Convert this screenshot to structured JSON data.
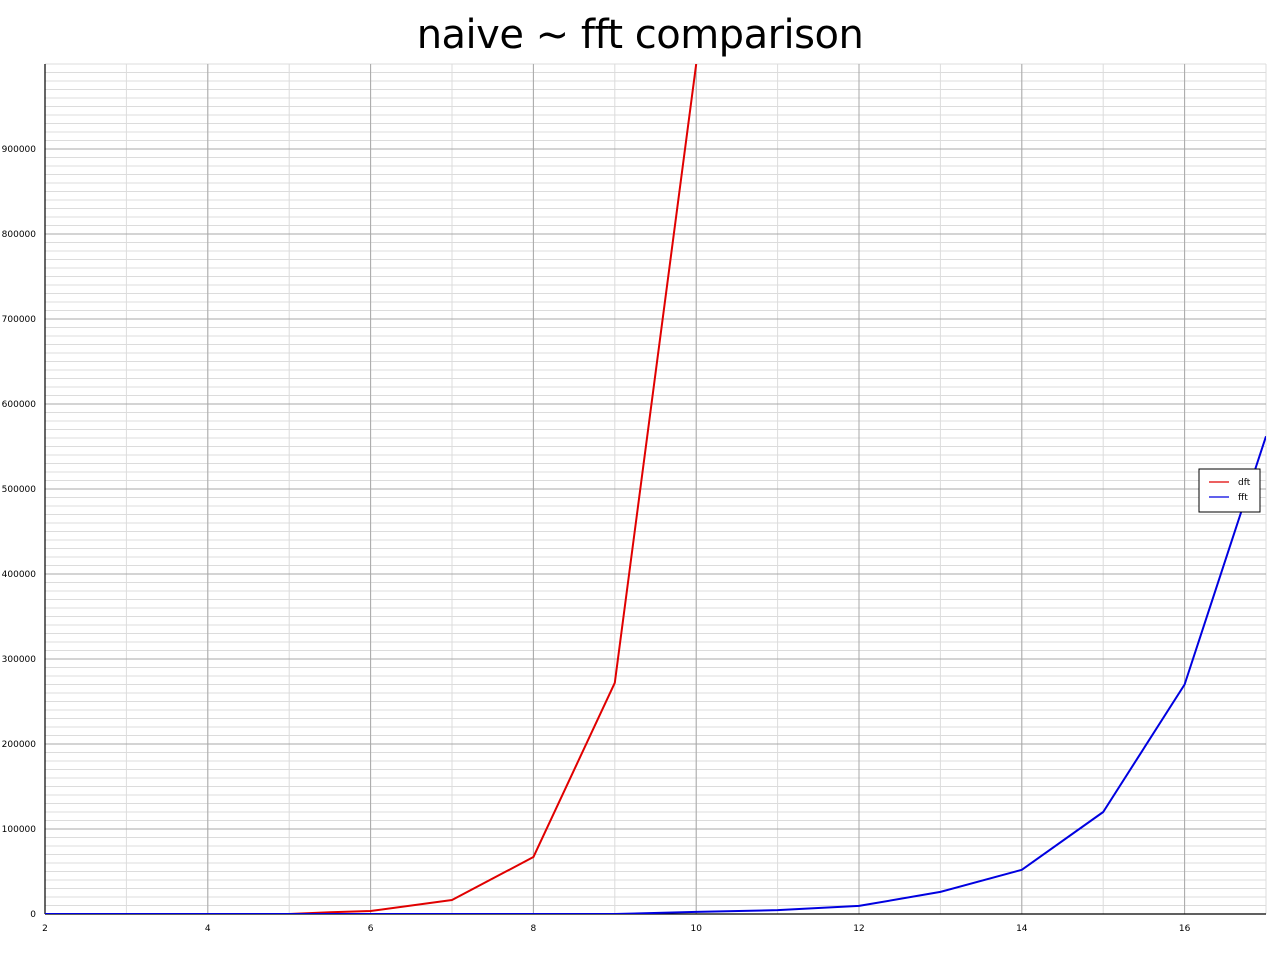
{
  "chart_data": {
    "type": "line",
    "title": "naive ~ fft comparison",
    "xlabel": "",
    "ylabel": "",
    "xlim": [
      2,
      17
    ],
    "ylim": [
      0,
      1000000
    ],
    "x_major_ticks": [
      2,
      4,
      6,
      8,
      10,
      12,
      14,
      16
    ],
    "x_minor_step": 1,
    "y_major_ticks": [
      0,
      100000,
      200000,
      300000,
      400000,
      500000,
      600000,
      700000,
      800000,
      900000
    ],
    "y_minor_step": 10000,
    "grid": true,
    "legend_position": "right",
    "series": [
      {
        "name": "dft",
        "color": "#e00000",
        "points": [
          {
            "x": 2,
            "y": 0
          },
          {
            "x": 3,
            "y": 0
          },
          {
            "x": 4,
            "y": 0
          },
          {
            "x": 5,
            "y": 0
          },
          {
            "x": 5.5,
            "y": 2000
          },
          {
            "x": 6,
            "y": 3500
          },
          {
            "x": 7,
            "y": 16500
          },
          {
            "x": 8,
            "y": 67000
          },
          {
            "x": 9,
            "y": 272000
          },
          {
            "x": 10,
            "y": 1000000
          }
        ]
      },
      {
        "name": "fft",
        "color": "#0000e0",
        "points": [
          {
            "x": 2,
            "y": 0
          },
          {
            "x": 3,
            "y": 0
          },
          {
            "x": 4,
            "y": 0
          },
          {
            "x": 5,
            "y": 0
          },
          {
            "x": 6,
            "y": 0
          },
          {
            "x": 7,
            "y": 0
          },
          {
            "x": 8,
            "y": 0
          },
          {
            "x": 9,
            "y": 0
          },
          {
            "x": 10,
            "y": 2500
          },
          {
            "x": 11,
            "y": 4500
          },
          {
            "x": 12,
            "y": 9500
          },
          {
            "x": 13,
            "y": 26000
          },
          {
            "x": 14,
            "y": 52000
          },
          {
            "x": 15,
            "y": 120000
          },
          {
            "x": 16,
            "y": 270000
          },
          {
            "x": 17,
            "y": 562000
          }
        ]
      }
    ]
  }
}
